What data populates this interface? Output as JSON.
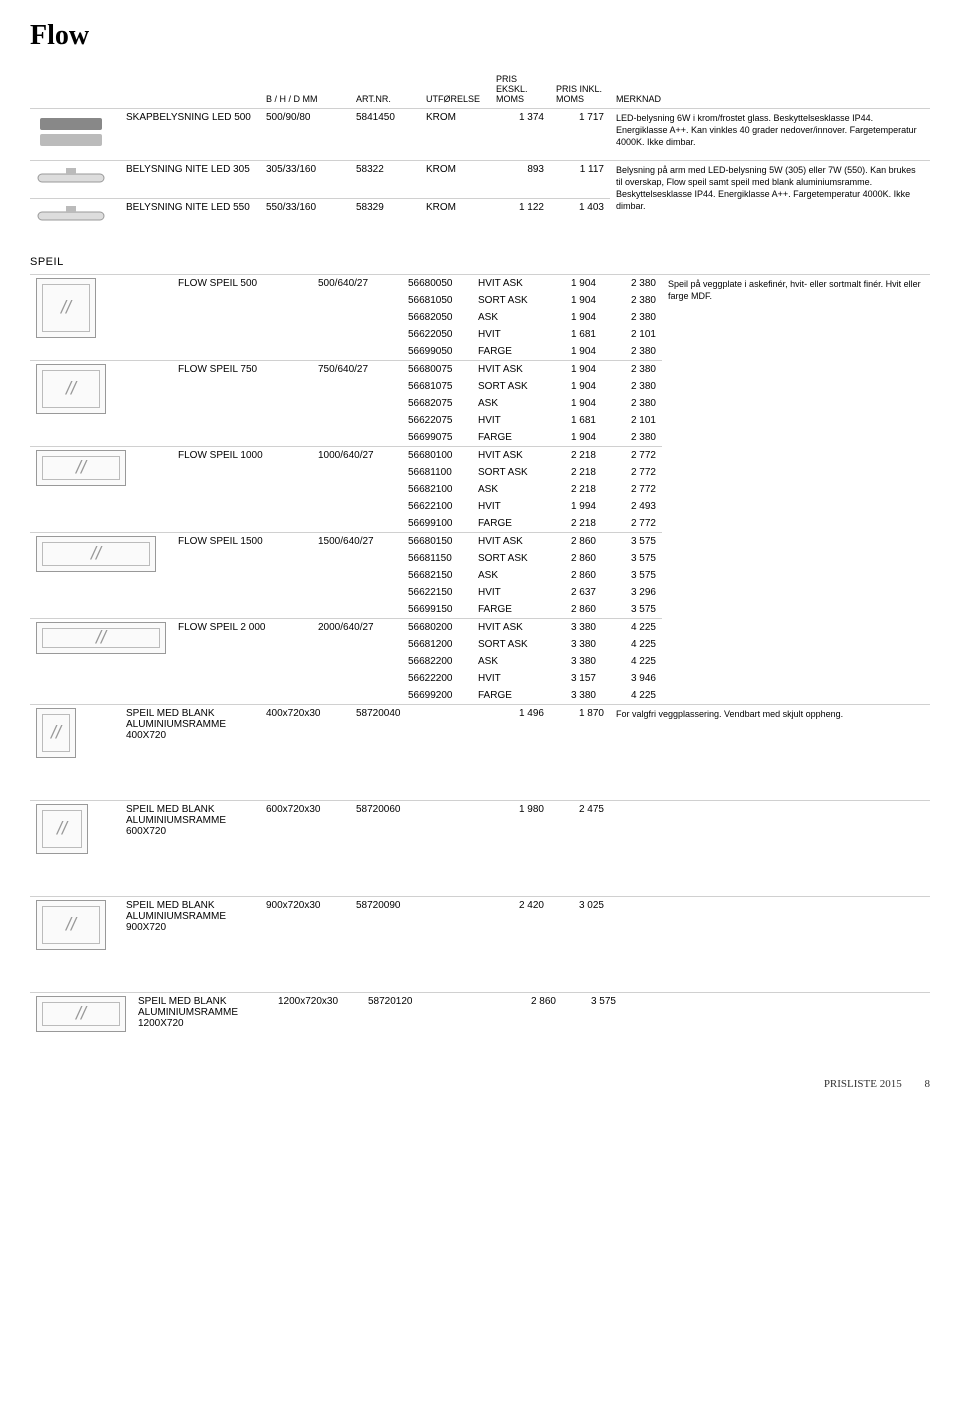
{
  "title": "Flow",
  "headers": {
    "dim": "B / H / D MM",
    "art": "ART.NR.",
    "exec": "UTFØRELSE",
    "p1a": "PRIS",
    "p1b": "EKSKL.",
    "p1c": "MOMS",
    "p2a": "PRIS INKL.",
    "p2b": "MOMS",
    "note": "MERKNAD"
  },
  "lighting": [
    {
      "name": "SKAPBELYSNING LED 500",
      "dim": "500/90/80",
      "art": "5841450",
      "exec": "KROM",
      "p1": "1 374",
      "p2": "1 717",
      "note": "LED-belysning 6W i krom/frostet glass. Beskyttelsesklasse IP44. Energiklasse A++. Kan vinkles 40 grader nedover/innover. Fargetemperatur 4000K. Ikke dimbar."
    },
    {
      "name": "BELYSNING NITE LED 305",
      "dim": "305/33/160",
      "art": "58322",
      "exec": "KROM",
      "p1": "893",
      "p2": "1 117",
      "note": "Belysning på arm med LED-belysning 5W (305) eller 7W (550). Kan brukes til overskap, Flow speil samt speil med blank aluminiumsramme. Beskyttelsesklasse IP44. Energiklasse A++. Fargetemperatur 4000K. Ikke dimbar."
    },
    {
      "name": "BELYSNING NITE LED 550",
      "dim": "550/33/160",
      "art": "58329",
      "exec": "KROM",
      "p1": "1 122",
      "p2": "1 403"
    }
  ],
  "speil_label": "SPEIL",
  "speil_note": "Speil på veggplate i askefinér, hvit- eller sortmalt finér. Hvit eller farge MDF.",
  "speil": [
    {
      "name": "FLOW SPEIL 500",
      "dim": "500/640/27",
      "thumb": "tall",
      "rows": [
        [
          "56680050",
          "HVIT ASK",
          "1 904",
          "2 380"
        ],
        [
          "56681050",
          "SORT ASK",
          "1 904",
          "2 380"
        ],
        [
          "56682050",
          "ASK",
          "1 904",
          "2 380"
        ],
        [
          "56622050",
          "HVIT",
          "1 681",
          "2 101"
        ],
        [
          "56699050",
          "FARGE",
          "1 904",
          "2 380"
        ]
      ]
    },
    {
      "name": "FLOW SPEIL 750",
      "dim": "750/640/27",
      "thumb": "",
      "rows": [
        [
          "56680075",
          "HVIT ASK",
          "1 904",
          "2 380"
        ],
        [
          "56681075",
          "SORT ASK",
          "1 904",
          "2 380"
        ],
        [
          "56682075",
          "ASK",
          "1 904",
          "2 380"
        ],
        [
          "56622075",
          "HVIT",
          "1 681",
          "2 101"
        ],
        [
          "56699075",
          "FARGE",
          "1 904",
          "2 380"
        ]
      ]
    },
    {
      "name": "FLOW SPEIL 1000",
      "dim": "1000/640/27",
      "thumb": "wide",
      "rows": [
        [
          "56680100",
          "HVIT ASK",
          "2 218",
          "2 772"
        ],
        [
          "56681100",
          "SORT ASK",
          "2 218",
          "2 772"
        ],
        [
          "56682100",
          "ASK",
          "2 218",
          "2 772"
        ],
        [
          "56622100",
          "HVIT",
          "1 994",
          "2 493"
        ],
        [
          "56699100",
          "FARGE",
          "2 218",
          "2 772"
        ]
      ]
    },
    {
      "name": "FLOW SPEIL 1500",
      "dim": "1500/640/27",
      "thumb": "wider",
      "rows": [
        [
          "56680150",
          "HVIT ASK",
          "2 860",
          "3 575"
        ],
        [
          "56681150",
          "SORT ASK",
          "2 860",
          "3 575"
        ],
        [
          "56682150",
          "ASK",
          "2 860",
          "3 575"
        ],
        [
          "56622150",
          "HVIT",
          "2 637",
          "3 296"
        ],
        [
          "56699150",
          "FARGE",
          "2 860",
          "3 575"
        ]
      ]
    },
    {
      "name": "FLOW SPEIL 2 000",
      "dim": "2000/640/27",
      "thumb": "wider2",
      "rows": [
        [
          "56680200",
          "HVIT ASK",
          "3 380",
          "4 225"
        ],
        [
          "56681200",
          "SORT ASK",
          "3 380",
          "4 225"
        ],
        [
          "56682200",
          "ASK",
          "3 380",
          "4 225"
        ],
        [
          "56622200",
          "HVIT",
          "3 157",
          "3 946"
        ],
        [
          "56699200",
          "FARGE",
          "3 380",
          "4 225"
        ]
      ]
    }
  ],
  "frame_note": "For valgfri veggplassering. Vendbart med skjult oppheng.",
  "frames": [
    {
      "name": "SPEIL MED BLANK ALUMINIUMSRAMME 400X720",
      "dim": "400x720x30",
      "art": "58720040",
      "p1": "1 496",
      "p2": "1 870",
      "thumb": "small",
      "note": true
    },
    {
      "name": "SPEIL MED BLANK ALUMINIUMSRAMME 600X720",
      "dim": "600x720x30",
      "art": "58720060",
      "p1": "1 980",
      "p2": "2 475",
      "thumb": "medium"
    },
    {
      "name": "SPEIL MED BLANK ALUMINIUMSRAMME 900X720",
      "dim": "900x720x30",
      "art": "58720090",
      "p1": "2 420",
      "p2": "3 025",
      "thumb": ""
    },
    {
      "name": "SPEIL MED BLANK ALUMINIUMSRAMME 1200X720",
      "dim": "1200x720x30",
      "art": "58720120",
      "p1": "2 860",
      "p2": "3 575",
      "thumb": "wide"
    }
  ],
  "footer": {
    "label": "PRISLISTE 2015",
    "page": "8"
  }
}
